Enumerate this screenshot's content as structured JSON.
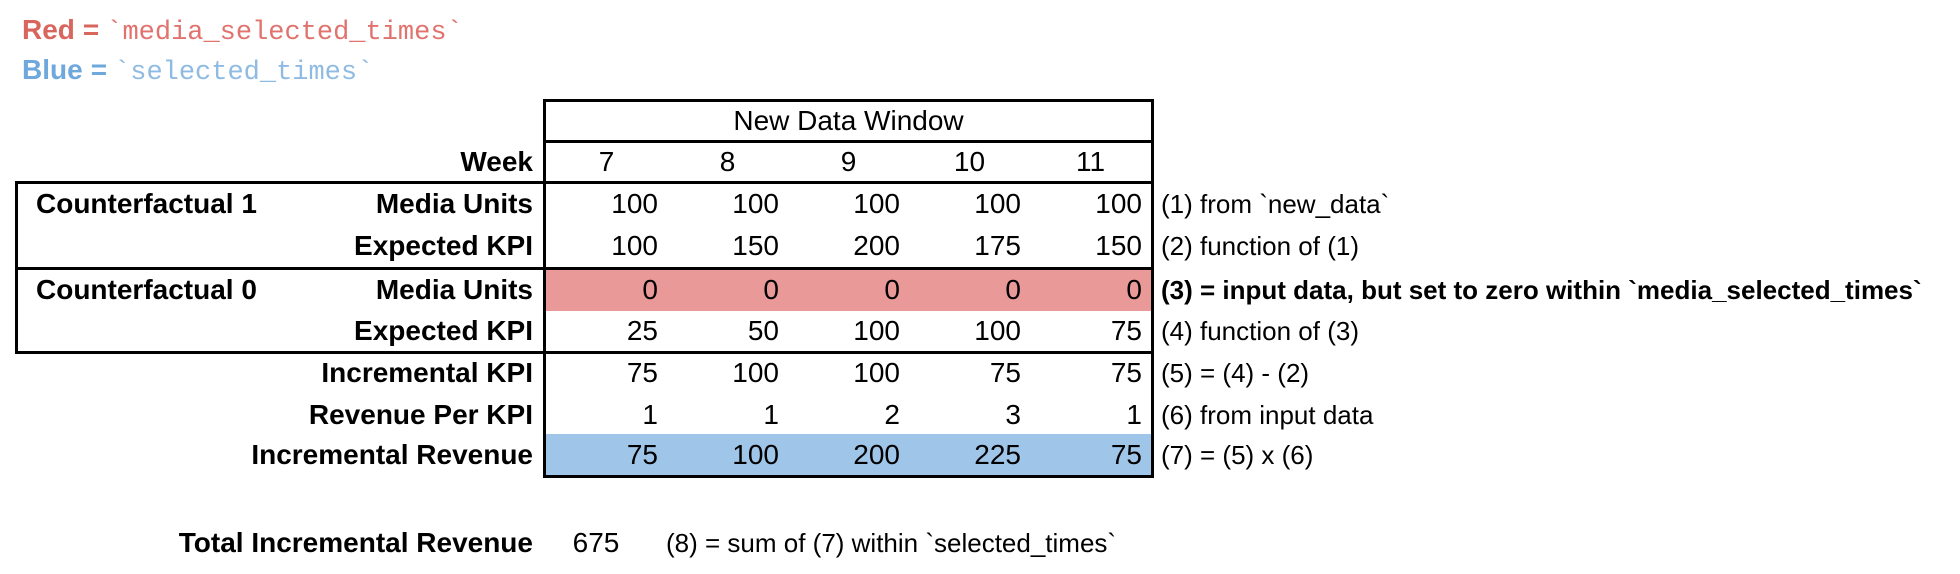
{
  "colors": {
    "red_fill": "#ea9999",
    "blue_fill": "#9fc5e8",
    "red_text": "#d9655f",
    "red_code_text": "#e0736e",
    "blue_text": "#6fa8dc",
    "blue_code_text": "#8fbbe3",
    "border": "#000000"
  },
  "legend": {
    "red_label": "Red",
    "red_eq": "=",
    "red_code": "`media_selected_times`",
    "blue_label": "Blue",
    "blue_eq": "=",
    "blue_code": "`selected_times`"
  },
  "table": {
    "header": "New Data Window",
    "week_label": "Week",
    "weeks": [
      "7",
      "8",
      "9",
      "10",
      "11"
    ],
    "groups": [
      {
        "label": "Counterfactual 1"
      },
      {
        "label": "Counterfactual 0"
      }
    ],
    "rows": [
      {
        "label": "Media Units",
        "values": [
          "100",
          "100",
          "100",
          "100",
          "100"
        ],
        "highlight": null,
        "annotation": "(1) from `new_data`",
        "annotation_bold": false,
        "group": "Counterfactual 1"
      },
      {
        "label": "Expected KPI",
        "values": [
          "100",
          "150",
          "200",
          "175",
          "150"
        ],
        "highlight": null,
        "annotation": "(2) function of (1)",
        "annotation_bold": false,
        "group": "Counterfactual 1"
      },
      {
        "label": "Media Units",
        "values": [
          "0",
          "0",
          "0",
          "0",
          "0"
        ],
        "highlight": "red",
        "annotation": "(3) = input data, but set to zero within `media_selected_times`",
        "annotation_bold": true,
        "group": "Counterfactual 0"
      },
      {
        "label": "Expected KPI",
        "values": [
          "25",
          "50",
          "100",
          "100",
          "75"
        ],
        "highlight": null,
        "annotation": "(4) function of (3)",
        "annotation_bold": false,
        "group": "Counterfactual 0"
      },
      {
        "label": "Incremental KPI",
        "values": [
          "75",
          "100",
          "100",
          "75",
          "75"
        ],
        "highlight": null,
        "annotation": "(5) = (4) - (2)",
        "annotation_bold": false,
        "group": null
      },
      {
        "label": "Revenue Per KPI",
        "values": [
          "1",
          "1",
          "2",
          "3",
          "1"
        ],
        "highlight": null,
        "annotation": "(6) from input data",
        "annotation_bold": false,
        "group": null
      },
      {
        "label": "Incremental Revenue",
        "values": [
          "75",
          "100",
          "200",
          "225",
          "75"
        ],
        "highlight": "blue",
        "annotation": "(7) = (5) x (6)",
        "annotation_bold": false,
        "group": null
      }
    ]
  },
  "footer": {
    "label": "Total Incremental Revenue",
    "value": "675",
    "annotation": "(8) = sum of (7) within `selected_times`"
  }
}
